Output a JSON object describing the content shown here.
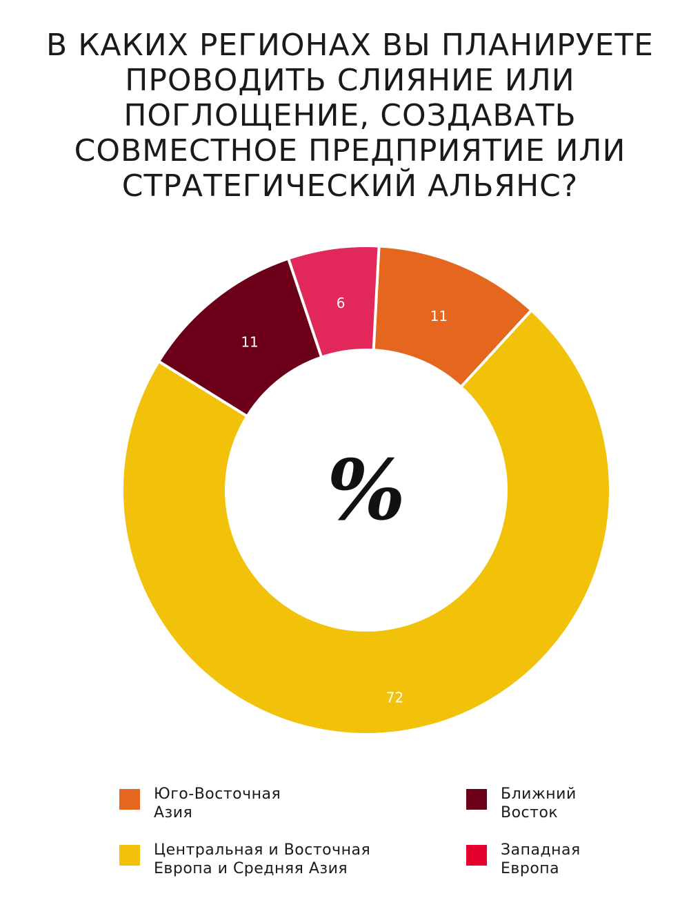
{
  "title_lines": [
    "В каких регионах вы планируете",
    "проводить слияние или",
    "поглощение, создавать",
    "совместное предприятие или",
    "стратегический альянс?"
  ],
  "center_symbol": "%",
  "chart_data": {
    "type": "pie",
    "style": "donut",
    "unit": "%",
    "title": "В каких регионах вы планируете проводить слияние или поглощение, создавать совместное предприятие или стратегический альянс?",
    "slices": [
      {
        "label": "Юго-Восточная Азия",
        "value": 11,
        "color": "#e5661e"
      },
      {
        "label": "Центральная и Восточная Европа и Средняя Азия",
        "value": 72,
        "color": "#f2c10a"
      },
      {
        "label": "Ближний Восток",
        "value": 11,
        "color": "#6d0019"
      },
      {
        "label": "Западная Европа",
        "value": 6,
        "color": "#e2275a"
      }
    ],
    "start_angle_deg": 3,
    "direction": "clockwise",
    "legend_position": "bottom"
  },
  "legend": [
    {
      "lines": [
        "Юго-Восточная",
        "Азия"
      ],
      "color": "#e5661e"
    },
    {
      "lines": [
        "Ближний",
        "Восток"
      ],
      "color": "#6d0019"
    },
    {
      "lines": [
        "Центральная и Восточная",
        "Европа и Средняя Азия"
      ],
      "color": "#f2c10a"
    },
    {
      "lines": [
        "Западная",
        "Европа"
      ],
      "color": "#e5002d"
    }
  ]
}
